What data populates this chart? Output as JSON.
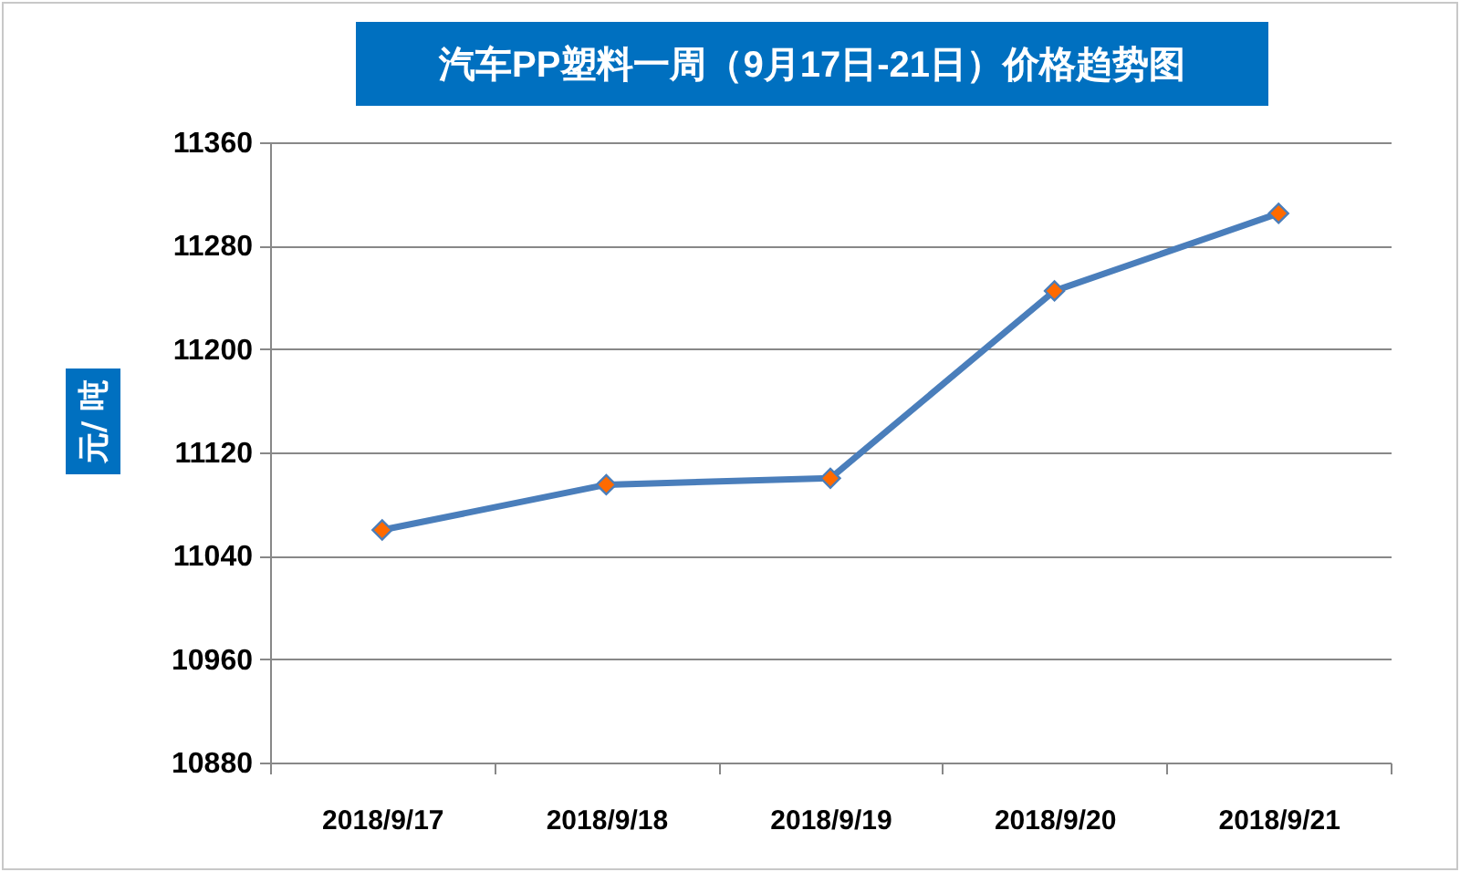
{
  "chart_data": {
    "type": "line",
    "title": "汽车PP塑料一周（9月17日-21日）价格趋势图",
    "ylabel": "元/ 吨",
    "categories": [
      "2018/9/17",
      "2018/9/18",
      "2018/9/19",
      "2018/9/20",
      "2018/9/21"
    ],
    "series": [
      {
        "color": "#4a7ebb",
        "values": [
          11060,
          11095,
          11100,
          11245,
          11305
        ]
      }
    ],
    "ylim": [
      10880,
      11360
    ],
    "yticks": [
      10880,
      10960,
      11040,
      11120,
      11200,
      11280,
      11360
    ],
    "grid": "y",
    "legend": false,
    "marker": "diamond",
    "line_style": "solid"
  }
}
